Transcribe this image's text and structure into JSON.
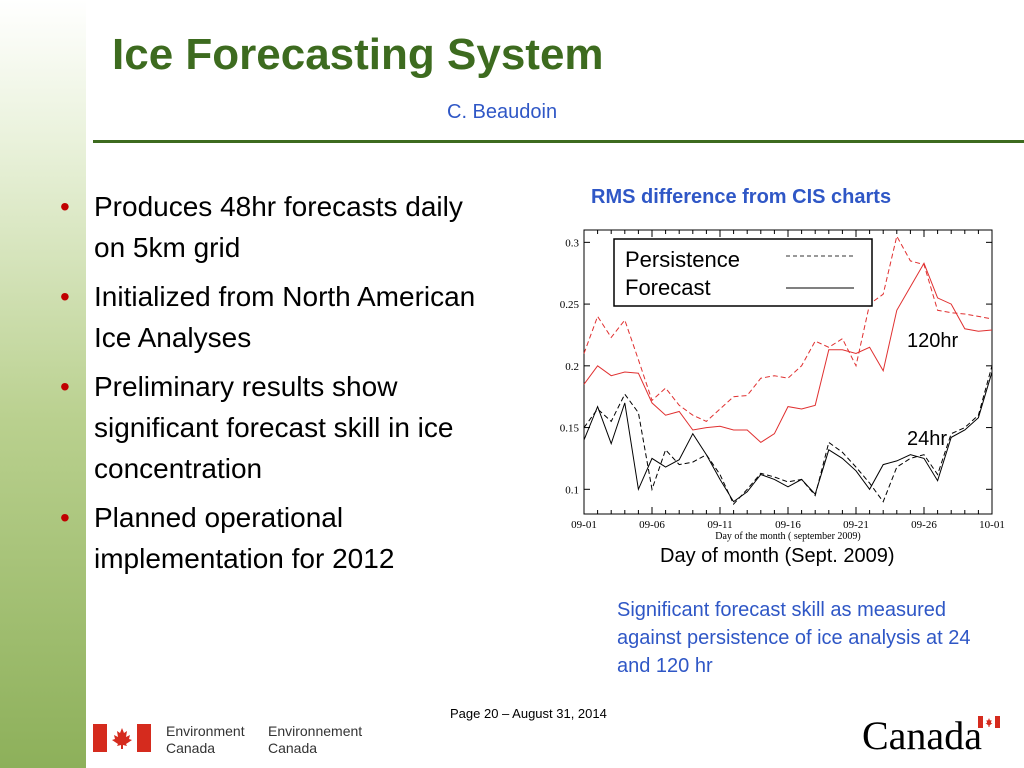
{
  "slide": {
    "title": "Ice Forecasting System",
    "author": "C. Beaudoin",
    "bullets": [
      "Produces 48hr forecasts daily on 5km grid",
      "Initialized from North American Ice Analyses",
      "Preliminary results show significant forecast skill in ice concentration",
      "Planned operational implementation for 2012"
    ],
    "bullet_glyph": "•",
    "chart_heading": "RMS difference from CIS charts",
    "x_caption": "Day of month (Sept. 2009)",
    "note": "Significant forecast skill as measured against persistence of ice analysis at 24 and 120 hr",
    "footer": "Page 20 – August 31, 2014",
    "logo_left_en": [
      "Environment",
      "Canada"
    ],
    "logo_left_fr": [
      "Environnement",
      "Canada"
    ],
    "wordmark": "Canada"
  },
  "colors": {
    "title": "#3d6b1f",
    "accent": "#2f57c6",
    "bullet": "#c00000",
    "series_120hr": "#e03030",
    "series_24hr": "#000000"
  },
  "chart_data": {
    "type": "line",
    "x_axis_label": "Day of the month ( september 2009)",
    "x_tick_labels": [
      "09-01",
      "09-06",
      "09-11",
      "09-16",
      "09-21",
      "09-26",
      "10-01"
    ],
    "y_tick_labels": [
      "0.1",
      "0.15",
      "0.2",
      "0.25",
      "0.3"
    ],
    "xlim": [
      1,
      31
    ],
    "ylim": [
      0.08,
      0.31
    ],
    "legend": {
      "placement": "top-center",
      "entries": [
        {
          "label": "Persistence",
          "style": "dashed"
        },
        {
          "label": "Forecast",
          "style": "solid"
        }
      ]
    },
    "annotations": [
      "120hr",
      "24hr"
    ],
    "x": [
      1,
      2,
      3,
      4,
      5,
      6,
      7,
      8,
      9,
      10,
      11,
      12,
      13,
      14,
      15,
      16,
      17,
      18,
      19,
      20,
      21,
      22,
      23,
      24,
      25,
      26,
      27,
      28,
      29,
      30,
      31
    ],
    "series": [
      {
        "group": "120hr",
        "style": "dashed",
        "values": [
          0.21,
          0.24,
          0.223,
          0.237,
          0.205,
          0.172,
          0.182,
          0.168,
          0.16,
          0.155,
          0.165,
          0.175,
          0.176,
          0.19,
          0.192,
          0.19,
          0.2,
          0.22,
          0.215,
          0.222,
          0.2,
          0.25,
          0.258,
          0.305,
          0.285,
          0.282,
          0.245,
          0.243,
          0.242,
          0.24,
          0.238
        ]
      },
      {
        "group": "120hr",
        "style": "solid",
        "values": [
          0.185,
          0.2,
          0.192,
          0.195,
          0.194,
          0.17,
          0.16,
          0.163,
          0.148,
          0.15,
          0.151,
          0.148,
          0.148,
          0.138,
          0.145,
          0.167,
          0.165,
          0.168,
          0.213,
          0.213,
          0.21,
          0.215,
          0.196,
          0.245,
          0.264,
          0.283,
          0.255,
          0.25,
          0.23,
          0.228,
          0.229
        ]
      },
      {
        "group": "24hr",
        "style": "dashed",
        "values": [
          0.15,
          0.165,
          0.155,
          0.177,
          0.162,
          0.1,
          0.132,
          0.12,
          0.122,
          0.128,
          0.112,
          0.088,
          0.1,
          0.113,
          0.11,
          0.106,
          0.108,
          0.095,
          0.138,
          0.13,
          0.118,
          0.105,
          0.09,
          0.118,
          0.125,
          0.128,
          0.112,
          0.145,
          0.15,
          0.16,
          0.2
        ]
      },
      {
        "group": "24hr",
        "style": "solid",
        "values": [
          0.14,
          0.167,
          0.137,
          0.17,
          0.1,
          0.125,
          0.118,
          0.124,
          0.145,
          0.128,
          0.108,
          0.09,
          0.098,
          0.112,
          0.108,
          0.102,
          0.108,
          0.096,
          0.132,
          0.125,
          0.115,
          0.1,
          0.12,
          0.123,
          0.128,
          0.125,
          0.107,
          0.142,
          0.148,
          0.158,
          0.195
        ]
      }
    ]
  }
}
